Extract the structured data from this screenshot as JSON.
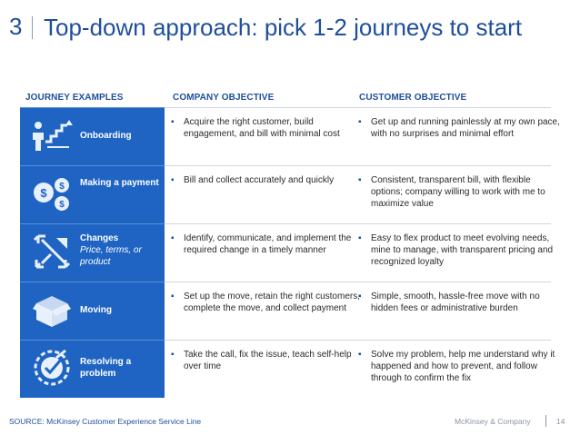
{
  "title": {
    "number": "3",
    "text": "Top-down approach: pick 1-2 journeys to start"
  },
  "headers": {
    "journey": "JOURNEY EXAMPLES",
    "company": "COMPANY OBJECTIVE",
    "customer": "CUSTOMER OBJECTIVE"
  },
  "rows": [
    {
      "icon": "person-growth-icon",
      "label": "Onboarding",
      "sublabel": "",
      "company": "Acquire the right customer, build engagement, and bill with minimal cost",
      "customer": "Get up and running painlessly  at my own pace, with no surprises and minimal effort"
    },
    {
      "icon": "dollar-coins-icon",
      "label": "Making a payment",
      "sublabel": "",
      "company": "Bill and collect accurately and quickly",
      "customer": "Consistent, transparent bill, with flexible options; company willing to work with me to maximize value"
    },
    {
      "icon": "expand-arrows-icon",
      "label": "Changes",
      "sublabel": "Price, terms, or product",
      "company": "Identify, communicate, and implement the required change in a timely manner",
      "customer": "Easy to flex product to meet evolving needs, mine to manage, with transparent pricing and recognized loyalty"
    },
    {
      "icon": "moving-box-icon",
      "label": "Moving",
      "sublabel": "",
      "company": "Set up the move, retain the right customers, complete the move, and collect payment",
      "customer": "Simple, smooth, hassle-free move with no hidden fees or administrative burden"
    },
    {
      "icon": "checkmark-seal-icon",
      "label": "Resolving a problem",
      "sublabel": "",
      "company": "Take the call, fix the issue, teach self-help over time",
      "customer": "Solve my problem, help me understand why it happened and how to prevent, and follow through to confirm the fix"
    }
  ],
  "footer": {
    "source": "SOURCE: McKinsey Customer Experience Service Line",
    "company": "McKinsey & Company",
    "page": "14"
  },
  "colors": {
    "accent": "#1f4e9b",
    "panel": "#1f64c3"
  }
}
